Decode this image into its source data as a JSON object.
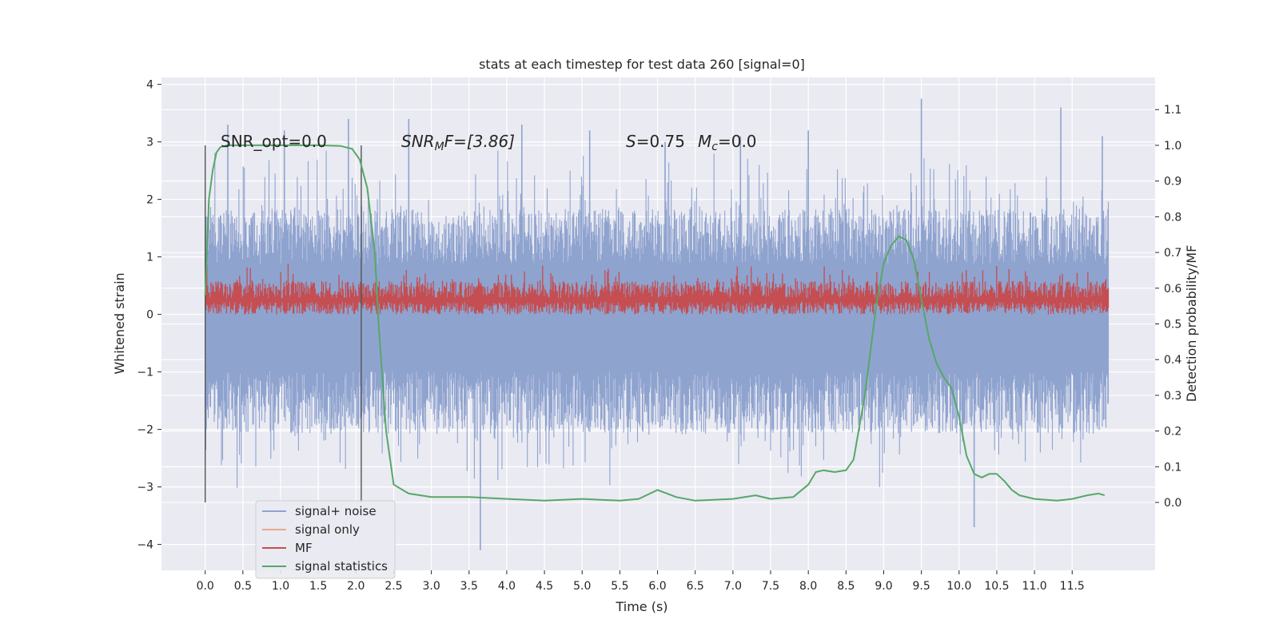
{
  "chart_data": {
    "type": "line",
    "title": "stats at each timestep for test data 260 [signal=0]",
    "xlabel": "Time (s)",
    "ylabel": "Whitened strain",
    "y2label": "Detection probability/MF",
    "xlim": [
      -0.58,
      12.6
    ],
    "ylim": [
      -4.45,
      4.12
    ],
    "y2lim": [
      -0.19,
      1.19
    ],
    "xticks": [
      "0.0",
      "0.5",
      "1.0",
      "1.5",
      "2.0",
      "2.5",
      "3.0",
      "3.5",
      "4.0",
      "4.5",
      "5.0",
      "5.5",
      "6.0",
      "6.5",
      "7.0",
      "7.5",
      "8.0",
      "8.5",
      "9.0",
      "9.5",
      "10.0",
      "10.5",
      "11.0",
      "11.5"
    ],
    "yticks": [
      "4",
      "3",
      "2",
      "1",
      "0",
      "−1",
      "−2",
      "−3",
      "−4"
    ],
    "y2ticks": [
      "1.1",
      "1.0",
      "0.9",
      "0.8",
      "0.7",
      "0.6",
      "0.5",
      "0.4",
      "0.3",
      "0.2",
      "0.1",
      "0.0"
    ],
    "grid": true,
    "legend_position": "lower-left",
    "annotations": {
      "snr_opt": "SNR_opt=0.0",
      "snr_mf_main": "SNR",
      "snr_mf_sub": "M",
      "snr_mf_rest": "F=[3.86]",
      "s_sym": "S",
      "s_val": "=0.75",
      "mc_sym": "M",
      "mc_sub": "c",
      "mc_val": "=0.0"
    },
    "window_markers_x": [
      0.0,
      2.07
    ],
    "series": [
      {
        "name": "signal+ noise",
        "color": "#8fa3cf",
        "axis": "left",
        "description_x_range": [
          0.0,
          11.98
        ],
        "envelope_lower": -1.8,
        "envelope_upper": 1.6,
        "peaks_x": [
          0.3,
          1.05,
          1.9,
          2.7,
          3.65,
          4.2,
          5.1,
          6.1,
          7.1,
          8.0,
          9.5,
          10.2,
          11.35,
          11.9
        ],
        "peaks_y": [
          3.3,
          3.2,
          3.4,
          3.4,
          -4.1,
          3.3,
          3.2,
          3.0,
          3.1,
          3.2,
          3.75,
          -3.7,
          3.6,
          3.1
        ]
      },
      {
        "name": "signal only",
        "color": "#e8a98b",
        "axis": "left",
        "x": [],
        "y": []
      },
      {
        "name": "MF",
        "color": "#c44e52",
        "axis": "left",
        "x_range": [
          0.0,
          11.98
        ],
        "level_lower": 0.0,
        "level_upper": 0.5,
        "peaks_y": 0.98
      },
      {
        "name": "signal statistics",
        "color": "#55a868",
        "axis": "right",
        "x": [
          0.0,
          0.05,
          0.1,
          0.15,
          0.2,
          0.3,
          0.5,
          1.0,
          1.5,
          1.8,
          1.95,
          2.05,
          2.15,
          2.25,
          2.3,
          2.4,
          2.5,
          2.7,
          3.0,
          3.5,
          4.0,
          4.5,
          5.0,
          5.5,
          5.75,
          6.0,
          6.25,
          6.5,
          7.0,
          7.3,
          7.5,
          7.8,
          8.0,
          8.1,
          8.2,
          8.35,
          8.5,
          8.6,
          8.75,
          8.9,
          9.0,
          9.1,
          9.2,
          9.3,
          9.4,
          9.5,
          9.6,
          9.7,
          9.8,
          9.9,
          10.0,
          10.1,
          10.2,
          10.3,
          10.4,
          10.5,
          10.6,
          10.7,
          10.8,
          11.0,
          11.3,
          11.5,
          11.7,
          11.85,
          11.93
        ],
        "y": [
          0.58,
          0.85,
          0.93,
          0.98,
          0.995,
          1.0,
          1.0,
          1.0,
          1.0,
          0.998,
          0.99,
          0.96,
          0.88,
          0.7,
          0.5,
          0.2,
          0.05,
          0.025,
          0.015,
          0.015,
          0.01,
          0.005,
          0.01,
          0.005,
          0.01,
          0.035,
          0.015,
          0.005,
          0.01,
          0.02,
          0.01,
          0.015,
          0.05,
          0.085,
          0.09,
          0.085,
          0.09,
          0.12,
          0.3,
          0.55,
          0.67,
          0.72,
          0.745,
          0.735,
          0.68,
          0.57,
          0.46,
          0.39,
          0.35,
          0.32,
          0.24,
          0.13,
          0.08,
          0.07,
          0.08,
          0.08,
          0.06,
          0.035,
          0.02,
          0.01,
          0.005,
          0.01,
          0.02,
          0.025,
          0.02
        ]
      }
    ]
  }
}
